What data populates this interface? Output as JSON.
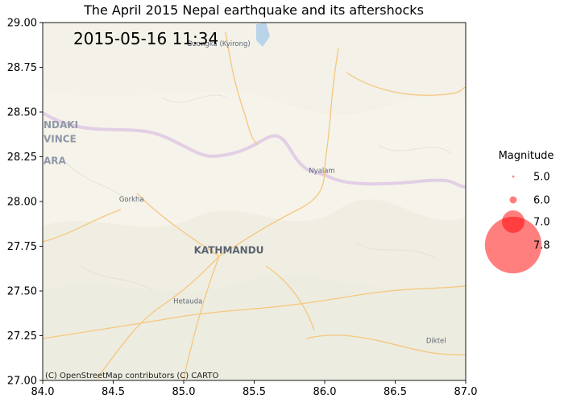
{
  "chart_data": {
    "type": "scatter",
    "title": "The April 2015 Nepal earthquake and its aftershocks",
    "timestamp": "2015-05-16 11:34",
    "xlabel": "",
    "ylabel": "",
    "xlim": [
      84.0,
      87.0
    ],
    "ylim": [
      27.0,
      29.0
    ],
    "x_ticks": [
      "84.0",
      "84.5",
      "85.0",
      "85.5",
      "86.0",
      "86.5",
      "87.0"
    ],
    "y_ticks": [
      "27.00",
      "27.25",
      "27.50",
      "27.75",
      "28.00",
      "28.25",
      "28.50",
      "28.75",
      "29.00"
    ],
    "series": [],
    "attribution": "(C) OpenStreetMap contributors (C) CARTO",
    "map_labels": [
      {
        "text": "Dzongka (Kyirong)",
        "lon": 85.25,
        "lat": 28.87,
        "style": "small"
      },
      {
        "text": "NDAKI",
        "lon": 84.07,
        "lat": 28.41,
        "style": "region"
      },
      {
        "text": "VINCE",
        "lon": 84.07,
        "lat": 28.33,
        "style": "region"
      },
      {
        "text": "ARA",
        "lon": 84.04,
        "lat": 28.21,
        "style": "region"
      },
      {
        "text": "Nyalam",
        "lon": 85.98,
        "lat": 28.16,
        "style": "small"
      },
      {
        "text": "Gorkha",
        "lon": 84.63,
        "lat": 28.0,
        "style": "small"
      },
      {
        "text": "KATHMANDU",
        "lon": 85.32,
        "lat": 27.71,
        "style": "capital"
      },
      {
        "text": "Hetauda",
        "lon": 85.03,
        "lat": 27.43,
        "style": "small"
      },
      {
        "text": "Diktel",
        "lon": 86.79,
        "lat": 27.21,
        "style": "small"
      }
    ],
    "legend": {
      "title": "Magnitude",
      "placement": "outside-right",
      "items": [
        {
          "label": "5.0",
          "magnitude": 5.0
        },
        {
          "label": "6.0",
          "magnitude": 6.0
        },
        {
          "label": "7.0",
          "magnitude": 7.0
        },
        {
          "label": "7.8",
          "magnitude": 7.8
        }
      ]
    },
    "colors": {
      "marker": "#ff0000",
      "map_bg": "#f6f3ea",
      "roads": "#f5c77e",
      "borders": "#e2cfe6",
      "lake": "#b9d3e8"
    }
  }
}
